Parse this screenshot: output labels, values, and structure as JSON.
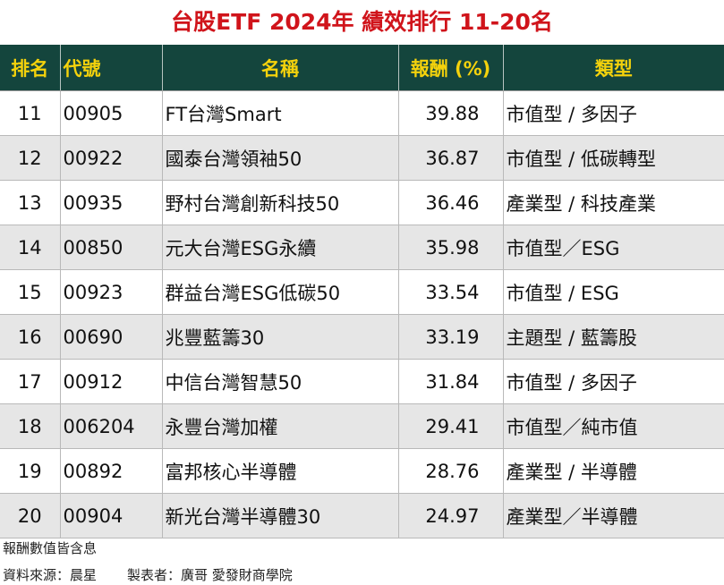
{
  "title": "台股ETF 2024年 績效排行 11-20名",
  "headers": {
    "rank": "排名",
    "code": "代號",
    "name": "名稱",
    "return": "報酬 (%)",
    "type": "類型"
  },
  "rows": [
    {
      "rank": "11",
      "code": "00905",
      "name": "FT台灣Smart",
      "return": "39.88",
      "type": "市值型 / 多因子"
    },
    {
      "rank": "12",
      "code": "00922",
      "name": "國泰台灣領袖50",
      "return": "36.87",
      "type": "市值型 / 低碳轉型"
    },
    {
      "rank": "13",
      "code": "00935",
      "name": "野村台灣創新科技50",
      "return": "36.46",
      "type": "產業型 / 科技產業"
    },
    {
      "rank": "14",
      "code": "00850",
      "name": "元大台灣ESG永續",
      "return": "35.98",
      "type": "市值型／ESG"
    },
    {
      "rank": "15",
      "code": "00923",
      "name": "群益台灣ESG低碳50",
      "return": "33.54",
      "type": "市值型 / ESG"
    },
    {
      "rank": "16",
      "code": "00690",
      "name": "兆豐藍籌30",
      "return": "33.19",
      "type": "主題型 / 藍籌股"
    },
    {
      "rank": "17",
      "code": "00912",
      "name": "中信台灣智慧50",
      "return": "31.84",
      "type": "市值型 / 多因子"
    },
    {
      "rank": "18",
      "code": "006204",
      "name": "永豐台灣加權",
      "return": "29.41",
      "type": "市值型／純市值"
    },
    {
      "rank": "19",
      "code": "00892",
      "name": "富邦核心半導體",
      "return": "28.76",
      "type": "產業型 / 半導體"
    },
    {
      "rank": "20",
      "code": "00904",
      "name": "新光台灣半導體30",
      "return": "24.97",
      "type": "產業型／半導體"
    }
  ],
  "footer": {
    "note": "報酬數值皆含息",
    "source": "資料來源：晨星",
    "maker": "製表者：廣哥 愛發財商學院"
  },
  "colors": {
    "title": "#d0141b",
    "header_bg": "#14453d",
    "header_text": "#f4d20c",
    "row_alt_bg": "#e6e6e6"
  }
}
